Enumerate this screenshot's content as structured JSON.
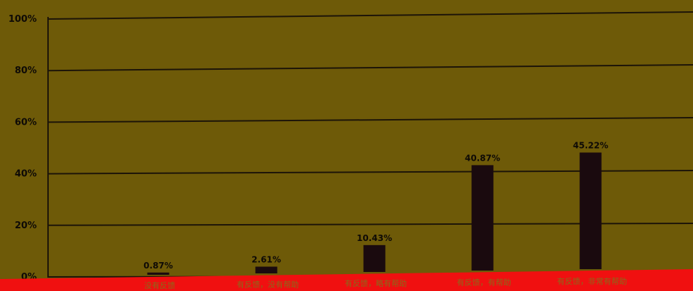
{
  "chart_data": {
    "type": "bar",
    "categories": [
      "没有反馈",
      "有反馈，没有帮助",
      "有反馈，略有帮助",
      "有反馈，有帮助",
      "有反馈，非常有帮助"
    ],
    "values": [
      0.87,
      2.61,
      10.43,
      40.87,
      45.22
    ],
    "value_labels": [
      "0.87%",
      "2.61%",
      "10.43%",
      "40.87%",
      "45.22%"
    ],
    "y_ticks": [
      "0%",
      "20%",
      "40%",
      "60%",
      "80%",
      "100%"
    ],
    "ylim": [
      0,
      100
    ],
    "grid": true,
    "title": "",
    "xlabel": "",
    "ylabel": "",
    "colors": {
      "background": "#6e5a08",
      "bar": "#1a0a0e",
      "grid": "#1c1408",
      "baseline_band": "#f01010"
    }
  }
}
